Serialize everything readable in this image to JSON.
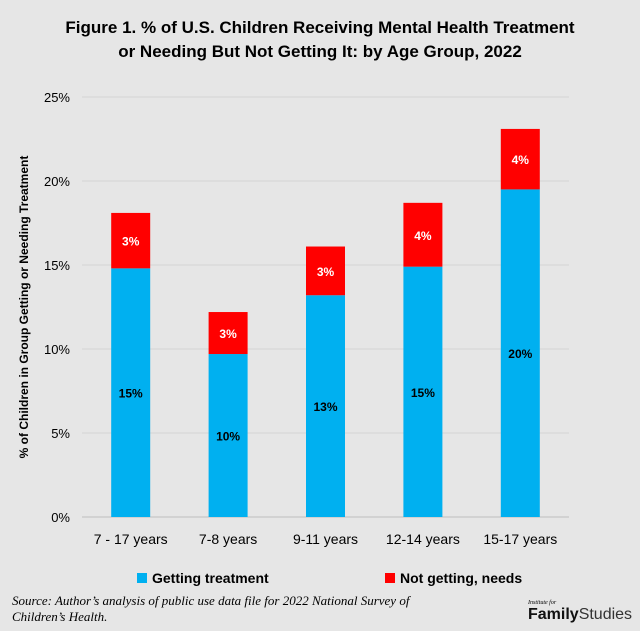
{
  "chart_data": {
    "type": "bar",
    "stacked": true,
    "title": "Figure 1. % of U.S. Children Receiving Mental Health Treatment or Needing But Not Getting It: by Age Group, 2022",
    "title_lines": [
      "Figure 1. % of U.S. Children Receiving Mental Health Treatment",
      "or Needing But Not Getting It: by Age Group, 2022"
    ],
    "xlabel": "",
    "ylabel": "% of Children in Group Getting or Needing Treatment",
    "ylim": [
      0,
      25
    ],
    "yticks": [
      "0%",
      "5%",
      "10%",
      "15%",
      "20%",
      "25%"
    ],
    "grid": true,
    "legend_position": "bottom",
    "categories": [
      "7 - 17 years",
      "7-8 years",
      "9-11 years",
      "12-14 years",
      "15-17 years"
    ],
    "series": [
      {
        "name": "Getting treatment",
        "color": "#00b0f0",
        "values": [
          14.8,
          9.7,
          13.2,
          14.9,
          19.5
        ],
        "labels": [
          "15%",
          "10%",
          "13%",
          "15%",
          "20%"
        ],
        "label_color": "#000000"
      },
      {
        "name": "Not getting, needs",
        "color": "#ff0000",
        "values": [
          3.3,
          2.5,
          2.9,
          3.8,
          3.6
        ],
        "labels": [
          "3%",
          "3%",
          "3%",
          "4%",
          "4%"
        ],
        "label_color": "#ffffff"
      }
    ]
  },
  "source": "Source: Author’s analysis of public use data file for 2022 National Survey of Children’s Health.",
  "logo": {
    "small": "Institute for",
    "bold": "Family",
    "light": "Studies"
  }
}
